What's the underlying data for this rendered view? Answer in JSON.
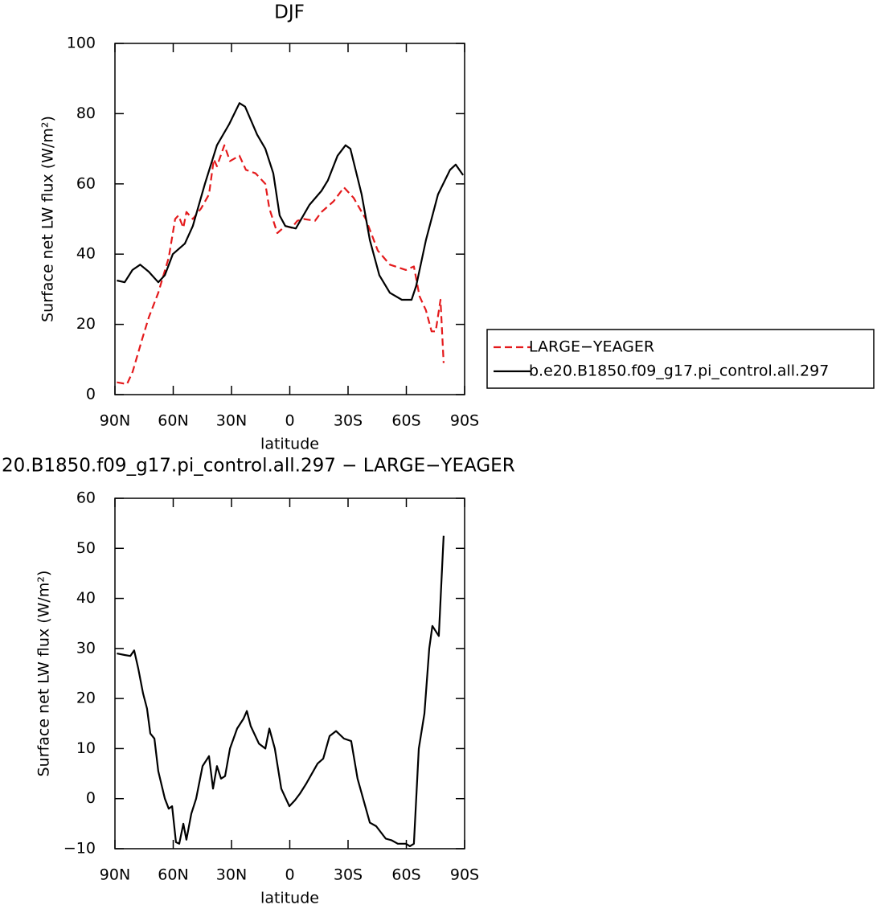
{
  "chart_data": [
    {
      "type": "line",
      "title": "DJF",
      "xlabel": "latitude",
      "ylabel": "Surface net LW flux (W/m²)",
      "xlim": [
        90,
        -90
      ],
      "ylim": [
        0,
        100
      ],
      "xticks": [
        {
          "value": 90,
          "label": "90N"
        },
        {
          "value": 60,
          "label": "60N"
        },
        {
          "value": 30,
          "label": "30N"
        },
        0,
        {
          "value": -30,
          "label": "30S"
        },
        {
          "value": -60,
          "label": "60S"
        },
        {
          "value": -90,
          "label": "90S"
        }
      ],
      "yticks": [
        0,
        20,
        40,
        60,
        80,
        100
      ],
      "legend": "right",
      "series": [
        {
          "name": "LARGE−YEAGER",
          "color": "#e41a1c",
          "line_style": "dashed",
          "x": [
            89,
            83.8,
            80.9,
            75.9,
            72.6,
            67.7,
            62.3,
            59,
            57.3,
            54.8,
            53.2,
            49.9,
            45.7,
            41.6,
            39.1,
            37.5,
            33.7,
            30.8,
            25.9,
            22.6,
            17.6,
            12.6,
            10.5,
            6.4,
            2.3,
            -1,
            -3.9,
            -7.2,
            -13,
            -16.3,
            -22.5,
            -27.9,
            -32.9,
            -39.1,
            -45.3,
            -51.5,
            -59.8,
            -63.9,
            -66.8,
            -70.1,
            -73,
            -75.1,
            -77.6,
            -79.2
          ],
          "values": [
            3.5,
            3,
            6.5,
            16,
            22,
            29,
            39,
            50,
            51,
            47.5,
            52,
            50,
            53,
            57,
            67,
            65,
            71,
            66.5,
            68,
            64,
            63,
            60,
            53,
            46,
            48,
            47.5,
            49.5,
            50,
            49.5,
            52,
            55,
            59,
            56,
            50,
            41,
            37,
            35.5,
            36.5,
            28,
            24,
            18,
            18,
            27,
            9
          ]
        },
        {
          "name": "b.e20.B1850.f09_g17.pi_control.all.297",
          "color": "#000000",
          "line_style": "solid",
          "x": [
            89,
            85,
            81,
            77,
            72.6,
            67.7,
            64.3,
            60.2,
            54,
            49.9,
            43.7,
            37.5,
            31.2,
            25.9,
            23,
            16.8,
            12.6,
            8.5,
            5.2,
            2.3,
            -3.1,
            -10.1,
            -16.3,
            -19.6,
            -24.6,
            -28.7,
            -31.2,
            -37,
            -41.2,
            -46.1,
            -51.5,
            -57.7,
            -62.7,
            -65.1,
            -70.1,
            -76.3,
            -82.5,
            -85.4,
            -89.2
          ],
          "values": [
            32.5,
            32,
            35.5,
            37,
            35,
            32,
            34,
            40,
            43,
            48,
            60,
            71,
            77,
            83,
            82,
            74,
            70,
            63,
            51,
            48,
            47.3,
            54,
            58,
            61,
            68,
            71,
            70,
            57,
            44,
            34,
            29,
            27,
            27,
            31,
            44,
            57,
            64,
            65.5,
            62.5
          ]
        }
      ]
    },
    {
      "type": "line",
      "title": "20.B1850.f09_g17.pi_control.all.297 − LARGE−YEAGER",
      "xlabel": "latitude",
      "ylabel": "Surface net LW flux (W/m²)",
      "xlim": [
        90,
        -90
      ],
      "ylim": [
        -10,
        60
      ],
      "xticks": [
        {
          "value": 90,
          "label": "90N"
        },
        {
          "value": 60,
          "label": "60N"
        },
        {
          "value": 30,
          "label": "30N"
        },
        0,
        {
          "value": -30,
          "label": "30S"
        },
        {
          "value": -60,
          "label": "60S"
        },
        {
          "value": -90,
          "label": "90S"
        }
      ],
      "yticks": [
        {
          "value": -10,
          "label": "−10"
        },
        0,
        10,
        20,
        30,
        40,
        50,
        60
      ],
      "series": [
        {
          "color": "#000000",
          "line_style": "solid",
          "x": [
            89,
            85,
            82.1,
            80.1,
            78,
            75.5,
            73.5,
            71.8,
            69.7,
            67.7,
            64.3,
            62.3,
            60.6,
            58.6,
            56.9,
            54.8,
            53.2,
            50.7,
            48.2,
            44.9,
            41.6,
            39.5,
            37.5,
            35.4,
            33.3,
            30.8,
            27.1,
            23.8,
            22.1,
            20.1,
            15.9,
            12.6,
            10.5,
            7.7,
            4.4,
            0.2,
            -2.7,
            -5.2,
            -8.5,
            -14.3,
            -17.2,
            -20.5,
            -23.8,
            -27.9,
            -31.6,
            -34.9,
            -41.2,
            -44.5,
            -49.4,
            -52.3,
            -55.6,
            -59.8,
            -61.8,
            -63.9,
            -66.4,
            -69.3,
            -71.8,
            -73.4,
            -76.7,
            -79.2
          ],
          "values": [
            29,
            28.7,
            28.5,
            29.6,
            26,
            21,
            18,
            13,
            12,
            5.5,
            0,
            -2,
            -1.5,
            -8.7,
            -9,
            -5,
            -8.2,
            -3,
            0,
            6.5,
            8.5,
            2,
            6.5,
            4,
            4.5,
            10,
            14,
            16,
            17.5,
            14.5,
            11,
            10,
            14,
            10,
            2,
            -1.5,
            -0.3,
            1,
            3,
            7,
            8,
            12.5,
            13.5,
            12,
            11.5,
            4,
            -4.8,
            -5.5,
            -8,
            -8.3,
            -9,
            -9,
            -9.5,
            -9,
            10,
            17,
            30,
            34.5,
            32.5,
            52.5
          ]
        }
      ]
    }
  ]
}
